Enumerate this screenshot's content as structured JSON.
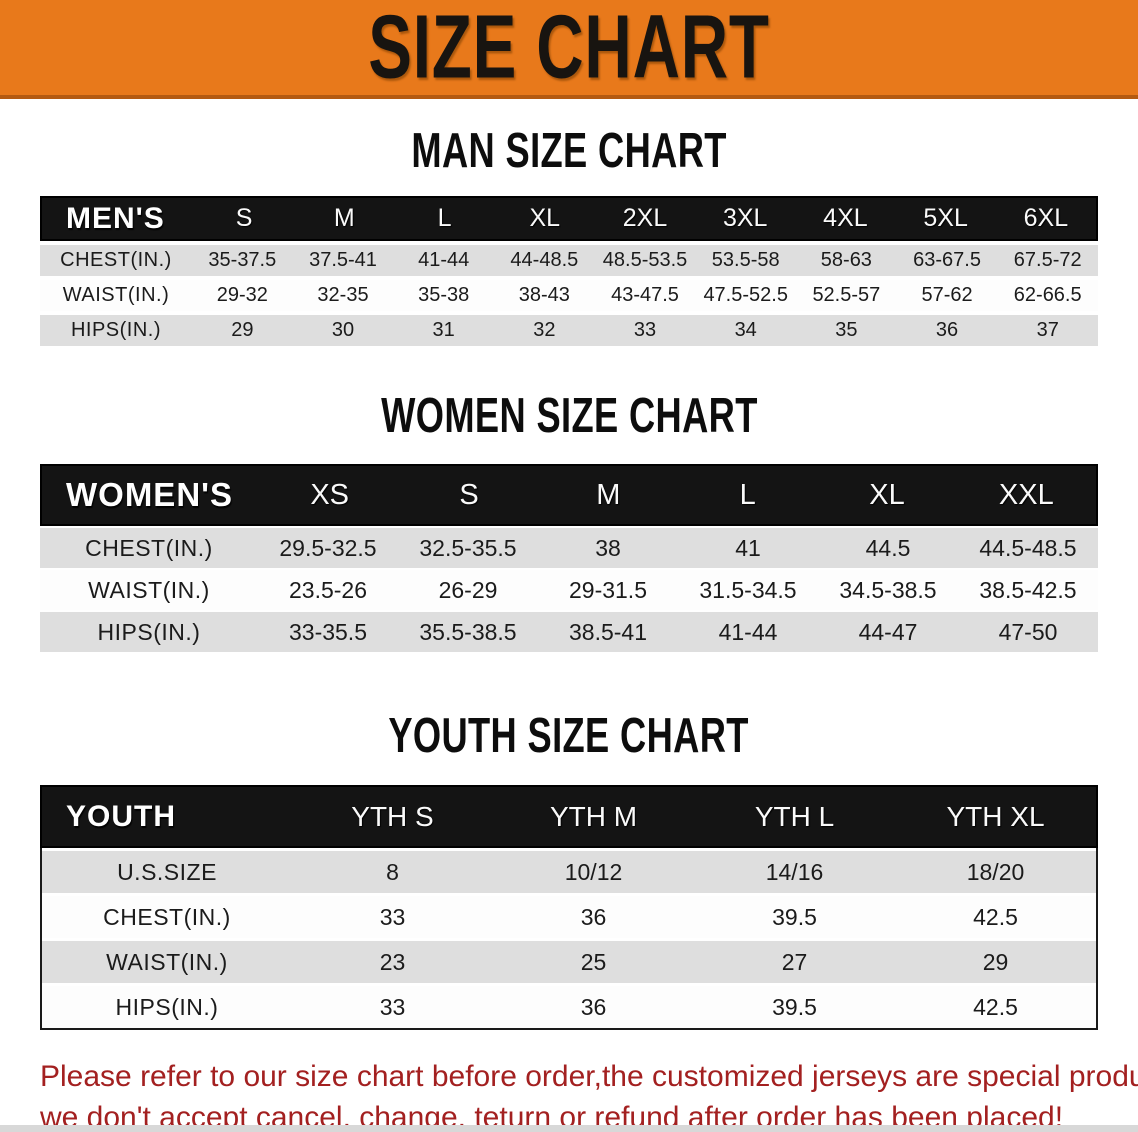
{
  "banner": {
    "title": "SIZE CHART",
    "bg_color": "#e8791b",
    "edge_color": "#b45a11"
  },
  "man": {
    "title": "MAN SIZE CHART",
    "table": {
      "label": "MEN'S",
      "columns": [
        "S",
        "M",
        "L",
        "XL",
        "2XL",
        "3XL",
        "4XL",
        "5XL",
        "6XL"
      ],
      "rows": [
        {
          "label": "CHEST(IN.)",
          "values": [
            "35-37.5",
            "37.5-41",
            "41-44",
            "44-48.5",
            "48.5-53.5",
            "53.5-58",
            "58-63",
            "63-67.5",
            "67.5-72"
          ]
        },
        {
          "label": "WAIST(IN.)",
          "values": [
            "29-32",
            "32-35",
            "35-38",
            "38-43",
            "43-47.5",
            "47.5-52.5",
            "52.5-57",
            "57-62",
            "62-66.5"
          ]
        },
        {
          "label": "HIPS(IN.)",
          "values": [
            "29",
            "30",
            "31",
            "32",
            "33",
            "34",
            "35",
            "36",
            "37"
          ]
        }
      ]
    }
  },
  "women": {
    "title": "WOMEN SIZE CHART",
    "table": {
      "label": "WOMEN'S",
      "columns": [
        "XS",
        "S",
        "M",
        "L",
        "XL",
        "XXL"
      ],
      "rows": [
        {
          "label": "CHEST(IN.)",
          "values": [
            "29.5-32.5",
            "32.5-35.5",
            "38",
            "41",
            "44.5",
            "44.5-48.5"
          ]
        },
        {
          "label": "WAIST(IN.)",
          "values": [
            "23.5-26",
            "26-29",
            "29-31.5",
            "31.5-34.5",
            "34.5-38.5",
            "38.5-42.5"
          ]
        },
        {
          "label": "HIPS(IN.)",
          "values": [
            "33-35.5",
            "35.5-38.5",
            "38.5-41",
            "41-44",
            "44-47",
            "47-50"
          ]
        }
      ]
    }
  },
  "youth": {
    "title": "YOUTH SIZE CHART",
    "table": {
      "label": "YOUTH",
      "columns": [
        "YTH S",
        "YTH M",
        "YTH L",
        "YTH XL"
      ],
      "rows": [
        {
          "label": "U.S.SIZE",
          "values": [
            "8",
            "10/12",
            "14/16",
            "18/20"
          ]
        },
        {
          "label": "CHEST(IN.)",
          "values": [
            "33",
            "36",
            "39.5",
            "42.5"
          ]
        },
        {
          "label": "WAIST(IN.)",
          "values": [
            "23",
            "25",
            "27",
            "29"
          ]
        },
        {
          "label": "HIPS(IN.)",
          "values": [
            "33",
            "36",
            "39.5",
            "42.5"
          ]
        }
      ]
    }
  },
  "disclaimer": {
    "line1": "Please refer to our size chart before order,the customized jerseys are special products,",
    "line2": "we don't accept cancel, change, teturn or refund after order has been placed!",
    "color": "#a32020"
  }
}
